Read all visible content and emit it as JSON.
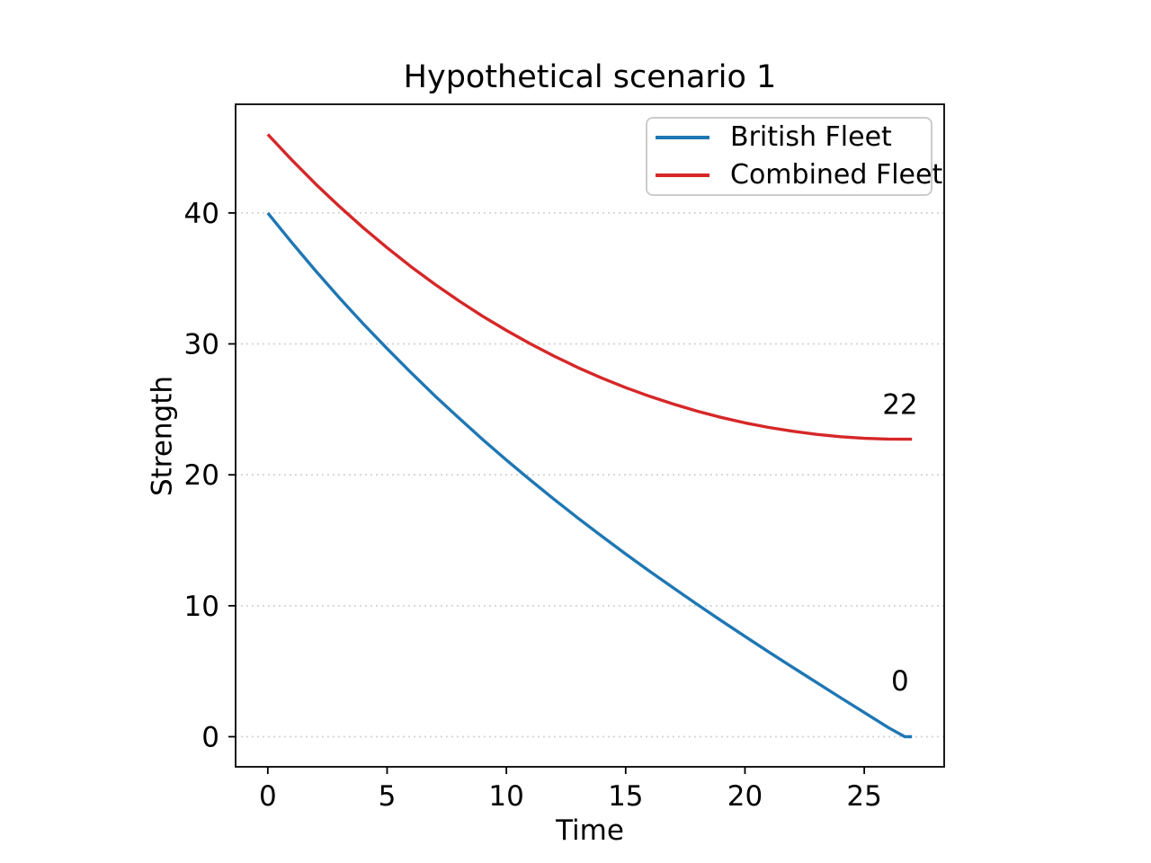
{
  "chart_data": {
    "type": "line",
    "title": "Hypothetical scenario 1",
    "xlabel": "Time",
    "ylabel": "Strength",
    "xlim": [
      -1.35,
      28.35
    ],
    "ylim": [
      -2.3,
      48.3
    ],
    "xticks": [
      0,
      5,
      10,
      15,
      20,
      25
    ],
    "yticks": [
      0,
      10,
      20,
      30,
      40
    ],
    "grid": {
      "axis": "y",
      "style": "dotted",
      "color": "#cfcfcf"
    },
    "spine_color": "#000000",
    "legend": {
      "position": "upper right",
      "entries": [
        {
          "label": "British Fleet",
          "color": "#1f77b4"
        },
        {
          "label": "Combined Fleet",
          "color": "#d62728"
        }
      ]
    },
    "series": [
      {
        "name": "British Fleet",
        "color": "#1f77b4",
        "x": [
          0,
          1,
          2,
          3,
          4,
          5,
          6,
          7,
          8,
          9,
          10,
          11,
          12,
          13,
          14,
          15,
          16,
          17,
          18,
          19,
          20,
          21,
          22,
          23,
          24,
          25,
          26,
          26.7,
          27
        ],
        "y": [
          40,
          37.75,
          35.59,
          33.52,
          31.54,
          29.64,
          27.81,
          26.04,
          24.35,
          22.71,
          21.13,
          19.61,
          18.13,
          16.7,
          15.31,
          13.96,
          12.64,
          11.36,
          10.1,
          8.87,
          7.66,
          6.47,
          5.3,
          4.14,
          2.99,
          1.85,
          0.71,
          0,
          0
        ]
      },
      {
        "name": "Combined Fleet",
        "color": "#d62728",
        "x": [
          0,
          1,
          2,
          3,
          4,
          5,
          6,
          7,
          8,
          9,
          10,
          11,
          12,
          13,
          14,
          15,
          16,
          17,
          18,
          19,
          20,
          21,
          22,
          23,
          24,
          25,
          26,
          27
        ],
        "y": [
          46,
          44.06,
          42.22,
          40.5,
          38.87,
          37.34,
          35.9,
          34.56,
          33.3,
          32.12,
          31.03,
          30.01,
          29.07,
          28.19,
          27.39,
          26.66,
          26.0,
          25.4,
          24.86,
          24.39,
          23.97,
          23.62,
          23.33,
          23.09,
          22.91,
          22.79,
          22.73,
          22.72
        ]
      }
    ],
    "annotations": [
      {
        "text": "22",
        "x": 26.5,
        "y": 25.4
      },
      {
        "text": "0",
        "x": 26.5,
        "y": 4.3
      }
    ]
  }
}
